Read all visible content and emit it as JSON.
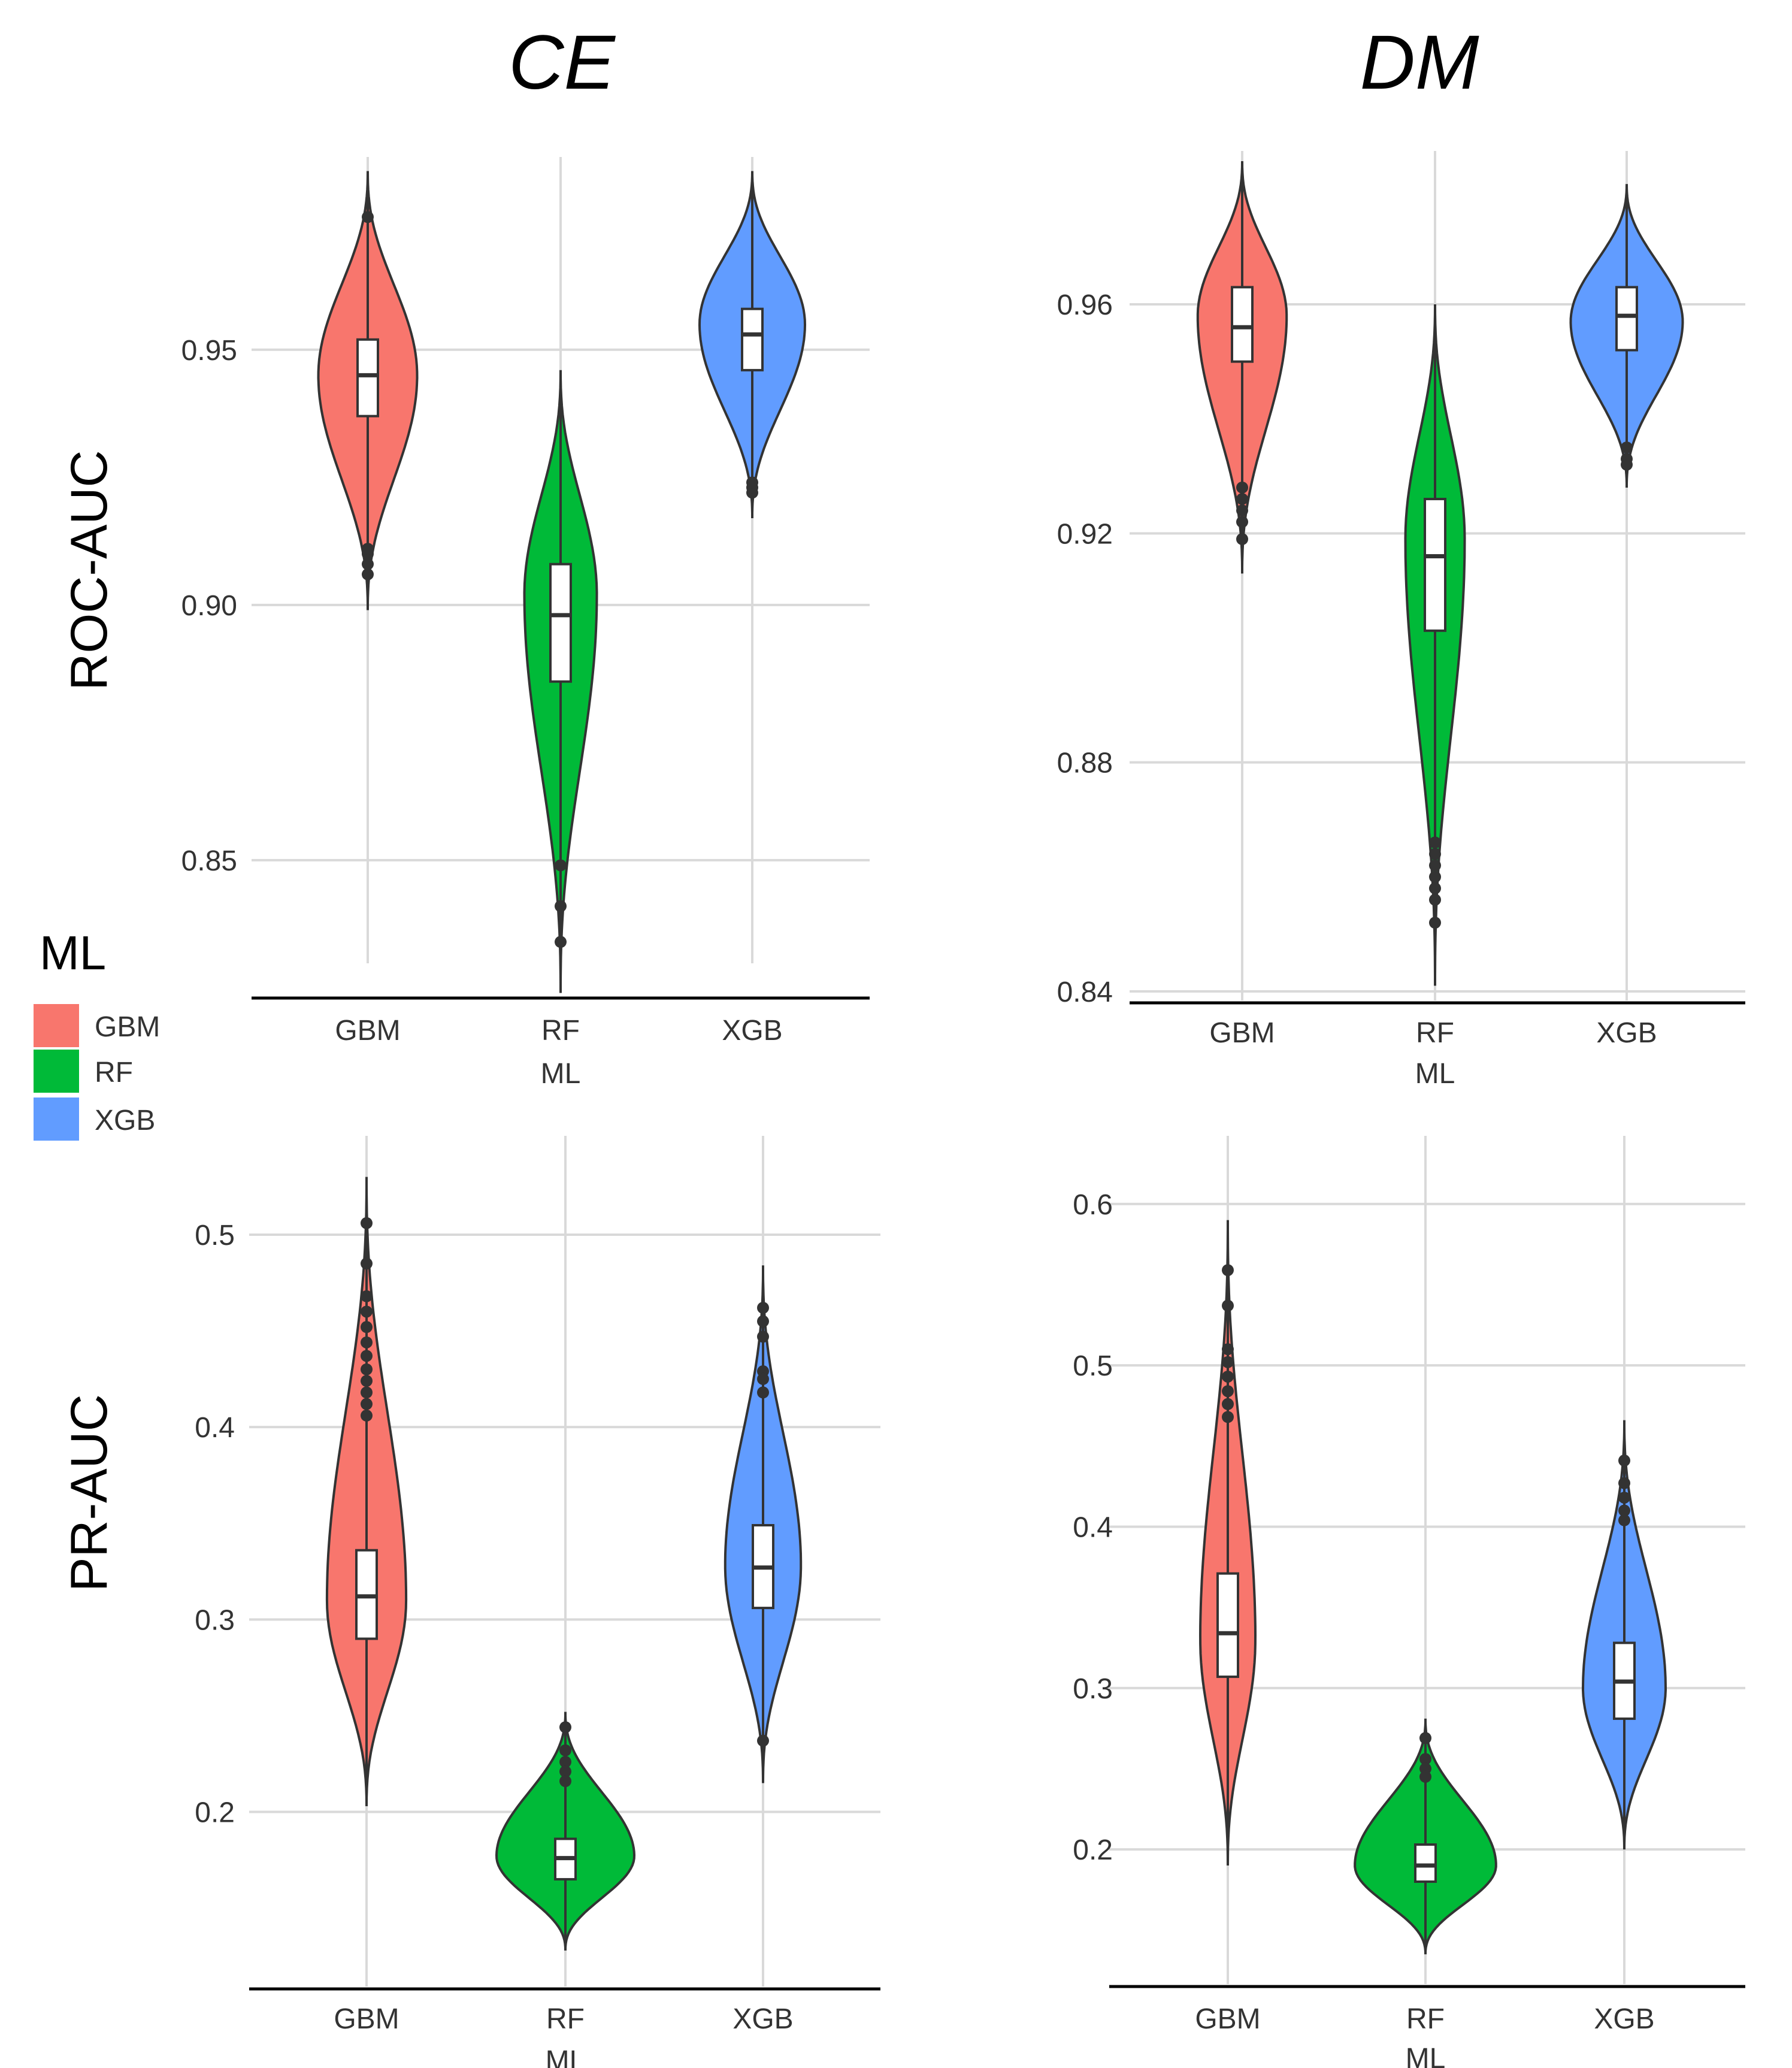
{
  "figure": {
    "columns": [
      "CE",
      "DM"
    ],
    "rows": [
      "ROC-AUC",
      "PR-AUC"
    ]
  },
  "legend": {
    "title": "ML",
    "items": [
      {
        "label": "GBM",
        "color": "#F8766D"
      },
      {
        "label": "RF",
        "color": "#00BA38"
      },
      {
        "label": "XGB",
        "color": "#619CFF"
      }
    ]
  },
  "chart_data": [
    {
      "type": "violin",
      "panel": "ROC-AUC / CE",
      "xlabel": "ML",
      "ylabel": "ROC-AUC",
      "categories": [
        "GBM",
        "RF",
        "XGB"
      ],
      "ylim": [
        0.823,
        0.988
      ],
      "yticks": [
        0.85,
        0.9,
        0.95
      ],
      "ytick_labels": [
        "0.85",
        "0.90",
        "0.95"
      ],
      "series": [
        {
          "name": "GBM",
          "min": 0.899,
          "max": 0.985,
          "q1": 0.937,
          "median": 0.945,
          "q3": 0.952,
          "mode": 0.945,
          "peak_width": 0.3,
          "outliers": [
            0.976,
            0.906,
            0.908,
            0.91,
            0.911
          ]
        },
        {
          "name": "RF",
          "min": 0.824,
          "max": 0.946,
          "q1": 0.885,
          "median": 0.898,
          "q3": 0.908,
          "mode": 0.902,
          "peak_width": 0.22,
          "outliers": [
            0.849,
            0.841,
            0.834
          ]
        },
        {
          "name": "XGB",
          "min": 0.917,
          "max": 0.985,
          "q1": 0.946,
          "median": 0.953,
          "q3": 0.958,
          "mode": 0.955,
          "peak_width": 0.32,
          "outliers": [
            0.922,
            0.923,
            0.924
          ]
        }
      ]
    },
    {
      "type": "violin",
      "panel": "ROC-AUC / DM",
      "xlabel": "ML",
      "ylabel": "ROC-AUC",
      "categories": [
        "GBM",
        "RF",
        "XGB"
      ],
      "ylim": [
        0.838,
        0.987
      ],
      "yticks": [
        0.84,
        0.88,
        0.92,
        0.96
      ],
      "ytick_labels": [
        "0.84",
        "0.88",
        "0.92",
        "0.96"
      ],
      "series": [
        {
          "name": "GBM",
          "min": 0.913,
          "max": 0.985,
          "q1": 0.95,
          "median": 0.956,
          "q3": 0.963,
          "mode": 0.958,
          "peak_width": 0.27,
          "outliers": [
            0.919,
            0.922,
            0.924,
            0.926,
            0.928
          ]
        },
        {
          "name": "RF",
          "min": 0.841,
          "max": 0.96,
          "q1": 0.903,
          "median": 0.916,
          "q3": 0.926,
          "mode": 0.919,
          "peak_width": 0.18,
          "outliers": [
            0.852,
            0.856,
            0.858,
            0.86,
            0.862,
            0.864,
            0.866
          ]
        },
        {
          "name": "XGB",
          "min": 0.928,
          "max": 0.981,
          "q1": 0.952,
          "median": 0.958,
          "q3": 0.963,
          "mode": 0.957,
          "peak_width": 0.34,
          "outliers": [
            0.932,
            0.933,
            0.935
          ]
        }
      ]
    },
    {
      "type": "violin",
      "panel": "PR-AUC / CE",
      "xlabel": "ML",
      "ylabel": "PR-AUC",
      "categories": [
        "GBM",
        "RF",
        "XGB"
      ],
      "ylim": [
        0.108,
        0.552
      ],
      "yticks": [
        0.2,
        0.3,
        0.4,
        0.5
      ],
      "ytick_labels": [
        "0.2",
        "0.3",
        "0.4",
        "0.5"
      ],
      "series": [
        {
          "name": "GBM",
          "min": 0.203,
          "max": 0.53,
          "q1": 0.29,
          "median": 0.312,
          "q3": 0.336,
          "mode": 0.31,
          "peak_width": 0.23,
          "outliers": [
            0.506,
            0.485,
            0.468,
            0.46,
            0.452,
            0.444,
            0.437,
            0.43,
            0.424,
            0.418,
            0.412,
            0.406
          ]
        },
        {
          "name": "RF",
          "min": 0.128,
          "max": 0.252,
          "q1": 0.165,
          "median": 0.176,
          "q3": 0.186,
          "mode": 0.177,
          "peak_width": 0.4,
          "outliers": [
            0.244,
            0.232,
            0.226,
            0.221,
            0.216
          ]
        },
        {
          "name": "XGB",
          "min": 0.215,
          "max": 0.484,
          "q1": 0.306,
          "median": 0.327,
          "q3": 0.349,
          "mode": 0.328,
          "peak_width": 0.22,
          "outliers": [
            0.462,
            0.455,
            0.447,
            0.429,
            0.425,
            0.418,
            0.237
          ]
        }
      ]
    },
    {
      "type": "violin",
      "panel": "PR-AUC / DM",
      "xlabel": "ML",
      "ylabel": "PR-AUC",
      "categories": [
        "GBM",
        "RF",
        "XGB"
      ],
      "ylim": [
        0.115,
        0.643
      ],
      "yticks": [
        0.2,
        0.3,
        0.4,
        0.5,
        0.6
      ],
      "ytick_labels": [
        "0.2",
        "0.3",
        "0.4",
        "0.5",
        "0.6"
      ],
      "series": [
        {
          "name": "GBM",
          "min": 0.19,
          "max": 0.59,
          "q1": 0.307,
          "median": 0.334,
          "q3": 0.371,
          "mode": 0.33,
          "peak_width": 0.16,
          "outliers": [
            0.559,
            0.537,
            0.51,
            0.502,
            0.493,
            0.484,
            0.476,
            0.468
          ]
        },
        {
          "name": "RF",
          "min": 0.135,
          "max": 0.281,
          "q1": 0.18,
          "median": 0.19,
          "q3": 0.203,
          "mode": 0.19,
          "peak_width": 0.41,
          "outliers": [
            0.269,
            0.256,
            0.25,
            0.245
          ]
        },
        {
          "name": "XGB",
          "min": 0.2,
          "max": 0.466,
          "q1": 0.281,
          "median": 0.304,
          "q3": 0.328,
          "mode": 0.3,
          "peak_width": 0.24,
          "outliers": [
            0.441,
            0.427,
            0.418,
            0.41,
            0.404
          ]
        }
      ]
    }
  ]
}
